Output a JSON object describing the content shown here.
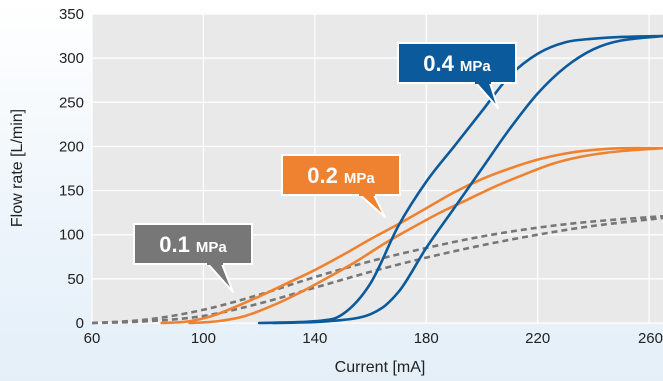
{
  "chart_data": {
    "type": "line",
    "xlabel": "Current [mA]",
    "ylabel": "Flow rate [L/min]",
    "xlim": [
      60,
      265
    ],
    "ylim": [
      0,
      350
    ],
    "xticks": [
      "60",
      "100",
      "140",
      "180",
      "220",
      "260"
    ],
    "yticks": [
      "0",
      "50",
      "100",
      "150",
      "200",
      "250",
      "300",
      "350"
    ],
    "grid": true,
    "colors": {
      "plot_background": "#e9e9e9",
      "grid": "#ffffff",
      "p04": "#0b5a9c",
      "p02": "#ee8230",
      "p01": "#777777"
    },
    "series": [
      {
        "callout_main": "0.4",
        "callout_unit": "MPa",
        "color": "#0b5a9c",
        "style": "solid",
        "curves": [
          [
            [
              120,
              0
            ],
            [
              140,
              2
            ],
            [
              150,
              10
            ],
            [
              160,
              45
            ],
            [
              170,
              110
            ],
            [
              180,
              160
            ],
            [
              190,
              200
            ],
            [
              200,
              240
            ],
            [
              210,
              280
            ],
            [
              220,
              305
            ],
            [
              230,
              318
            ],
            [
              240,
              322
            ],
            [
              250,
              324
            ],
            [
              265,
              325
            ]
          ],
          [
            [
              125,
              0
            ],
            [
              145,
              2
            ],
            [
              160,
              10
            ],
            [
              170,
              35
            ],
            [
              180,
              85
            ],
            [
              190,
              130
            ],
            [
              200,
              175
            ],
            [
              210,
              220
            ],
            [
              220,
              260
            ],
            [
              230,
              290
            ],
            [
              240,
              310
            ],
            [
              250,
              320
            ],
            [
              265,
              325
            ]
          ]
        ]
      },
      {
        "callout_main": "0.2",
        "callout_unit": "MPa",
        "color": "#ee8230",
        "style": "solid",
        "curves": [
          [
            [
              85,
              0
            ],
            [
              95,
              2
            ],
            [
              105,
              10
            ],
            [
              120,
              30
            ],
            [
              130,
              45
            ],
            [
              140,
              60
            ],
            [
              150,
              77
            ],
            [
              160,
              95
            ],
            [
              170,
              112
            ],
            [
              180,
              130
            ],
            [
              190,
              148
            ],
            [
              200,
              163
            ],
            [
              210,
              175
            ],
            [
              220,
              185
            ],
            [
              230,
              192
            ],
            [
              240,
              196
            ],
            [
              250,
              198
            ],
            [
              265,
              198
            ]
          ],
          [
            [
              95,
              0
            ],
            [
              105,
              2
            ],
            [
              115,
              8
            ],
            [
              125,
              20
            ],
            [
              135,
              35
            ],
            [
              145,
              52
            ],
            [
              155,
              70
            ],
            [
              165,
              90
            ],
            [
              175,
              108
            ],
            [
              185,
              125
            ],
            [
              195,
              140
            ],
            [
              205,
              155
            ],
            [
              215,
              168
            ],
            [
              225,
              180
            ],
            [
              235,
              188
            ],
            [
              245,
              193
            ],
            [
              255,
              196
            ],
            [
              265,
              198
            ]
          ]
        ]
      },
      {
        "callout_main": "0.1",
        "callout_unit": "MPa",
        "color": "#777777",
        "style": "dashed",
        "curves": [
          [
            [
              60,
              0
            ],
            [
              80,
              4
            ],
            [
              100,
              15
            ],
            [
              120,
              32
            ],
            [
              140,
              52
            ],
            [
              160,
              70
            ],
            [
              180,
              85
            ],
            [
              200,
              98
            ],
            [
              220,
              108
            ],
            [
              240,
              115
            ],
            [
              265,
              121
            ]
          ],
          [
            [
              60,
              0
            ],
            [
              80,
              2
            ],
            [
              100,
              8
            ],
            [
              120,
              22
            ],
            [
              140,
              40
            ],
            [
              160,
              58
            ],
            [
              180,
              74
            ],
            [
              200,
              88
            ],
            [
              220,
              100
            ],
            [
              240,
              110
            ],
            [
              265,
              119
            ]
          ]
        ]
      }
    ]
  }
}
